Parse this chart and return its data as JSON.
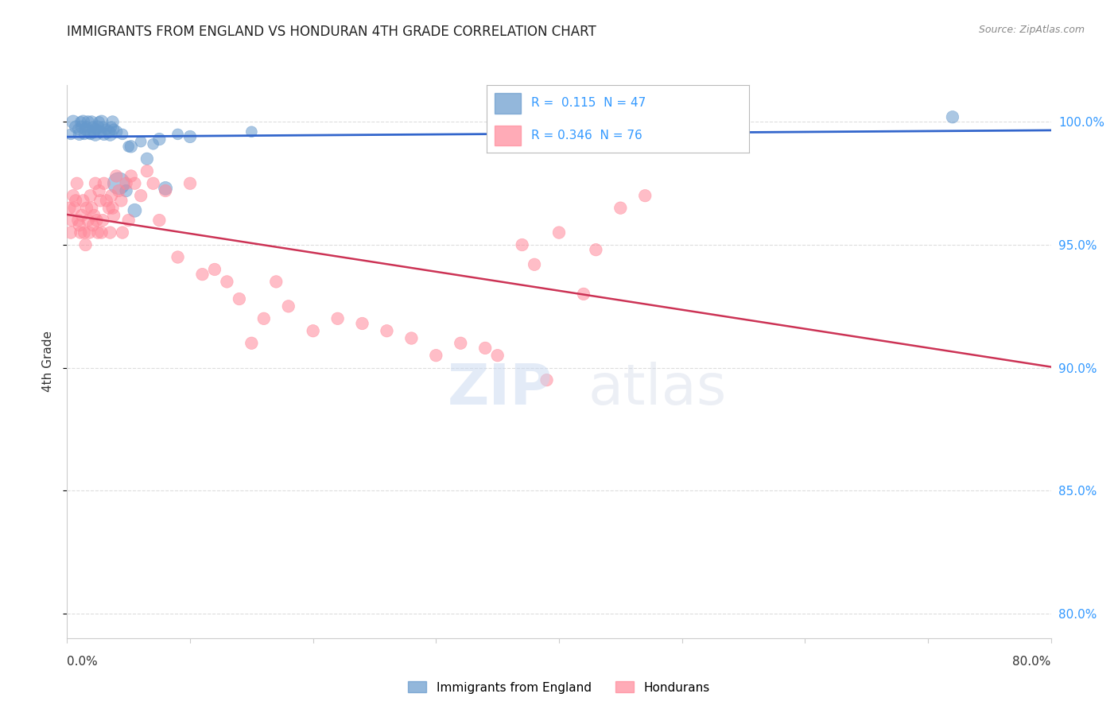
{
  "title": "IMMIGRANTS FROM ENGLAND VS HONDURAN 4TH GRADE CORRELATION CHART",
  "source": "Source: ZipAtlas.com",
  "ylabel": "4th Grade",
  "r_england": 0.115,
  "n_england": 47,
  "r_honduran": 0.346,
  "n_honduran": 76,
  "legend_england": "Immigrants from England",
  "legend_honduran": "Hondurans",
  "england_color": "#6699cc",
  "honduran_color": "#ff8899",
  "england_line_color": "#3366cc",
  "honduran_line_color": "#cc3355",
  "background_color": "#ffffff",
  "grid_color": "#dddddd",
  "right_axis_color": "#3399ff",
  "xlim": [
    0.0,
    80.0
  ],
  "ylim": [
    79.0,
    101.5
  ],
  "right_yticks": [
    80.0,
    85.0,
    90.0,
    95.0,
    100.0
  ],
  "england_scatter_x": [
    0.3,
    0.5,
    0.7,
    0.9,
    1.0,
    1.1,
    1.2,
    1.3,
    1.4,
    1.5,
    1.6,
    1.7,
    1.8,
    1.9,
    2.0,
    2.1,
    2.2,
    2.3,
    2.4,
    2.5,
    2.6,
    2.7,
    2.8,
    2.9,
    3.0,
    3.2,
    3.4,
    3.5,
    3.6,
    3.7,
    3.8,
    4.0,
    4.2,
    4.5,
    4.8,
    5.0,
    5.2,
    5.5,
    6.0,
    6.5,
    7.0,
    7.5,
    8.0,
    9.0,
    10.0,
    15.0,
    72.0
  ],
  "england_scatter_y": [
    99.5,
    100.0,
    99.8,
    99.7,
    99.5,
    100.0,
    99.8,
    100.0,
    99.5,
    99.7,
    99.8,
    100.0,
    99.6,
    99.5,
    100.0,
    99.8,
    99.6,
    99.5,
    99.7,
    99.8,
    100.0,
    99.6,
    100.0,
    99.8,
    99.5,
    99.7,
    99.6,
    99.5,
    99.8,
    100.0,
    99.7,
    99.6,
    97.5,
    99.5,
    97.2,
    99.0,
    99.0,
    96.4,
    99.2,
    98.5,
    99.1,
    99.3,
    97.3,
    99.5,
    99.4,
    99.6,
    100.2
  ],
  "england_scatter_size": [
    20,
    30,
    25,
    20,
    25,
    20,
    25,
    30,
    20,
    25,
    20,
    25,
    30,
    20,
    25,
    20,
    25,
    30,
    20,
    25,
    20,
    25,
    30,
    20,
    25,
    20,
    25,
    30,
    20,
    25,
    20,
    25,
    80,
    20,
    25,
    20,
    25,
    30,
    20,
    25,
    20,
    25,
    30,
    20,
    25,
    20,
    25
  ],
  "honduran_scatter_x": [
    0.2,
    0.3,
    0.4,
    0.5,
    0.6,
    0.7,
    0.8,
    0.9,
    1.0,
    1.1,
    1.2,
    1.3,
    1.4,
    1.5,
    1.6,
    1.7,
    1.8,
    1.9,
    2.0,
    2.1,
    2.2,
    2.3,
    2.4,
    2.5,
    2.6,
    2.7,
    2.8,
    2.9,
    3.0,
    3.2,
    3.4,
    3.5,
    3.6,
    3.7,
    3.8,
    4.0,
    4.2,
    4.4,
    4.5,
    4.8,
    5.0,
    5.2,
    5.5,
    6.0,
    6.5,
    7.0,
    7.5,
    8.0,
    9.0,
    10.0,
    11.0,
    12.0,
    13.0,
    14.0,
    15.0,
    16.0,
    17.0,
    18.0,
    20.0,
    22.0,
    24.0,
    26.0,
    28.0,
    30.0,
    32.0,
    34.0,
    35.0,
    37.0,
    38.0,
    39.0,
    40.0,
    42.0,
    43.0,
    45.0,
    47.0,
    50.0
  ],
  "honduran_scatter_y": [
    96.5,
    95.5,
    96.0,
    97.0,
    96.5,
    96.8,
    97.5,
    96.0,
    95.8,
    95.5,
    96.2,
    96.8,
    95.5,
    95.0,
    96.5,
    96.0,
    95.5,
    97.0,
    96.5,
    95.8,
    96.2,
    97.5,
    96.0,
    95.5,
    97.2,
    96.8,
    95.5,
    96.0,
    97.5,
    96.8,
    96.5,
    95.5,
    97.0,
    96.5,
    96.2,
    97.8,
    97.2,
    96.8,
    95.5,
    97.5,
    96.0,
    97.8,
    97.5,
    97.0,
    98.0,
    97.5,
    96.0,
    97.2,
    94.5,
    97.5,
    93.8,
    94.0,
    93.5,
    92.8,
    91.0,
    92.0,
    93.5,
    92.5,
    91.5,
    92.0,
    91.8,
    91.5,
    91.2,
    90.5,
    91.0,
    90.8,
    90.5,
    95.0,
    94.2,
    89.5,
    95.5,
    93.0,
    94.8,
    96.5,
    97.0,
    99.5
  ],
  "honduran_scatter_size": [
    25,
    25,
    25,
    25,
    25,
    25,
    25,
    25,
    25,
    25,
    25,
    25,
    25,
    25,
    25,
    25,
    25,
    25,
    25,
    25,
    25,
    25,
    25,
    25,
    25,
    25,
    25,
    25,
    25,
    25,
    25,
    25,
    25,
    25,
    25,
    25,
    25,
    25,
    25,
    25,
    25,
    25,
    25,
    25,
    25,
    25,
    25,
    25,
    25,
    25,
    25,
    25,
    25,
    25,
    25,
    25,
    25,
    25,
    25,
    25,
    25,
    25,
    25,
    25,
    25,
    25,
    25,
    25,
    25,
    25,
    25,
    25,
    25,
    25,
    25,
    25
  ]
}
